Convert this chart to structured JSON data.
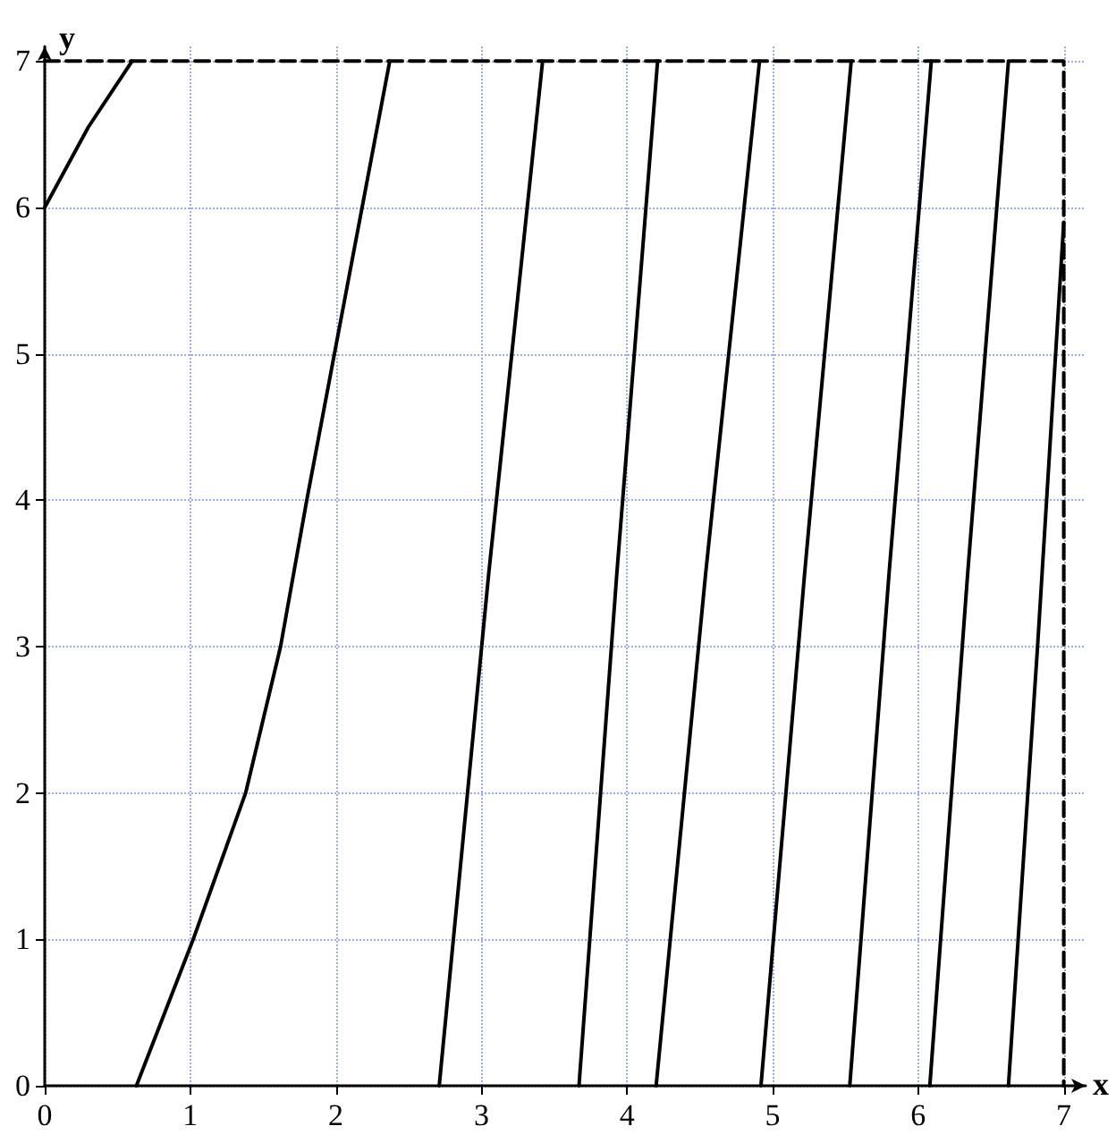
{
  "chart_data": {
    "type": "line",
    "xlabel": "x",
    "ylabel": "y",
    "xlim": [
      0,
      7.15
    ],
    "ylim": [
      0,
      7.1
    ],
    "xticks": [
      0,
      1,
      2,
      3,
      4,
      5,
      6,
      7
    ],
    "yticks": [
      0,
      1,
      2,
      3,
      4,
      5,
      6,
      7
    ],
    "grid": true,
    "marker": "none",
    "line_style": "solid",
    "series": [
      {
        "color": "#000000",
        "x": [
          0,
          0.3,
          0.6
        ],
        "values": [
          6,
          6.55,
          7
        ]
      },
      {
        "color": "#000000",
        "x": [
          0.63,
          1.02,
          1.38,
          1.62,
          1.8,
          1.99,
          2.18,
          2.37
        ],
        "values": [
          0,
          1,
          2,
          3,
          4,
          5,
          6,
          7
        ]
      },
      {
        "color": "#000000",
        "x": [
          2.71,
          3.05,
          3.42
        ],
        "values": [
          0,
          3.5,
          7
        ]
      },
      {
        "color": "#000000",
        "x": [
          3.67,
          3.93,
          4.21
        ],
        "values": [
          0,
          3.5,
          7
        ]
      },
      {
        "color": "#000000",
        "x": [
          4.2,
          4.54,
          4.91
        ],
        "values": [
          0,
          3.5,
          7
        ]
      },
      {
        "color": "#000000",
        "x": [
          4.92,
          5.22,
          5.54
        ],
        "values": [
          0,
          3.5,
          7
        ]
      },
      {
        "color": "#000000",
        "x": [
          5.53,
          5.8,
          6.09
        ],
        "values": [
          0,
          3.5,
          7
        ]
      },
      {
        "color": "#000000",
        "x": [
          6.08,
          6.34,
          6.62
        ],
        "values": [
          0,
          3.5,
          7
        ]
      },
      {
        "color": "#000000",
        "x": [
          6.62,
          6.82,
          7
        ],
        "values": [
          0,
          3,
          5.9
        ]
      },
      {
        "color": "#000000",
        "line_style": "dashed",
        "x": [
          0,
          7,
          7
        ],
        "values": [
          7,
          7,
          0
        ]
      }
    ]
  }
}
